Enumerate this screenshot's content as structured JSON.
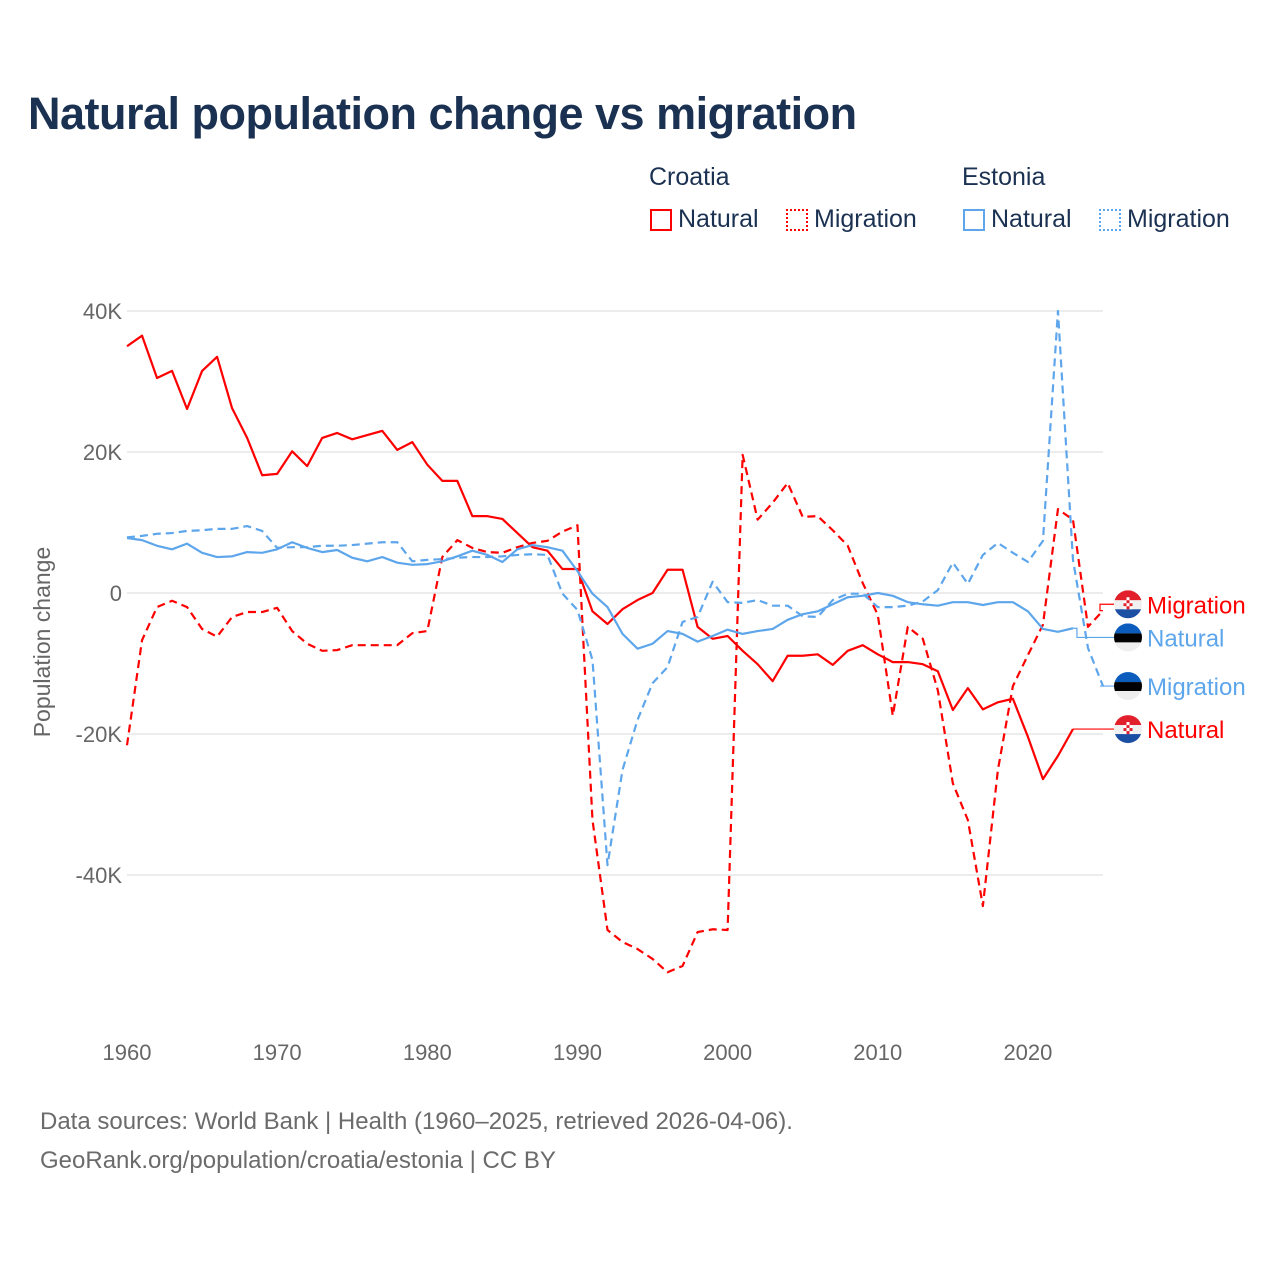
{
  "title": "Natural population change vs migration",
  "legend": {
    "groups": [
      {
        "country": "Croatia",
        "items": [
          {
            "label": "Natural",
            "style": "solid",
            "color": "#ff0000"
          },
          {
            "label": "Migration",
            "style": "dotted",
            "color": "#ff0000"
          }
        ]
      },
      {
        "country": "Estonia",
        "items": [
          {
            "label": "Natural",
            "style": "solid",
            "color": "#5ea6ec"
          },
          {
            "label": "Migration",
            "style": "dotted",
            "color": "#5ea6ec"
          }
        ]
      }
    ]
  },
  "footer": {
    "line1": "Data sources: World Bank | Health (1960–2025, retrieved 2026-04-06).",
    "line2": "GeoRank.org/population/croatia/estonia | CC BY"
  },
  "chart_data": {
    "type": "line",
    "title": "Natural population change vs migration",
    "xlabel": "",
    "ylabel": "Population change",
    "xlim": [
      1960,
      2025
    ],
    "ylim": [
      -57,
      43
    ],
    "x_ticks": [
      {
        "v": 1960,
        "label": "1960"
      },
      {
        "v": 1970,
        "label": "1970"
      },
      {
        "v": 1980,
        "label": "1980"
      },
      {
        "v": 1990,
        "label": "1990"
      },
      {
        "v": 2000,
        "label": "2000"
      },
      {
        "v": 2010,
        "label": "2010"
      },
      {
        "v": 2020,
        "label": "2020"
      }
    ],
    "y_ticks": [
      {
        "v": 40,
        "label": "40K"
      },
      {
        "v": 20,
        "label": "20K"
      },
      {
        "v": 0,
        "label": "0"
      },
      {
        "v": -20,
        "label": "-20K"
      },
      {
        "v": -40,
        "label": "-40K"
      }
    ],
    "units": "thousands",
    "grid": true,
    "legend_position": "top-right",
    "series": [
      {
        "name": "Croatia Natural",
        "end_label": "Natural",
        "color": "#ff0000",
        "dash": false,
        "label_y": -19.3,
        "start": 1960,
        "values": [
          35.0,
          36.5,
          30.5,
          31.5,
          26.1,
          31.5,
          33.5,
          26.2,
          22.0,
          16.7,
          16.9,
          20.1,
          18.0,
          22.0,
          22.7,
          21.8,
          22.4,
          23.0,
          20.3,
          21.4,
          18.2,
          15.9,
          15.9,
          10.9,
          10.9,
          10.5,
          8.5,
          6.5,
          6.0,
          3.4,
          3.4,
          -2.6,
          -4.4,
          -2.3,
          -1.0,
          0.0,
          3.3,
          3.3,
          -4.8,
          -6.5,
          -6.1,
          -8.2,
          -10.1,
          -12.5,
          -8.9,
          -8.9,
          -8.7,
          -10.2,
          -8.2,
          -7.4,
          -8.7,
          -9.8,
          -9.8,
          -10.1,
          -11.1,
          -16.6,
          -13.5,
          -16.5,
          -15.5,
          -15.0,
          -20.4,
          -26.4,
          -23.1,
          -19.3
        ]
      },
      {
        "name": "Croatia Migration",
        "end_label": "Migration",
        "color": "#ff0000",
        "dash": true,
        "label_y": -1.6,
        "start": 1960,
        "values": [
          -21.6,
          -6.7,
          -2.0,
          -1.1,
          -2.0,
          -5.1,
          -6.2,
          -3.4,
          -2.7,
          -2.7,
          -2.1,
          -5.4,
          -7.2,
          -8.2,
          -8.1,
          -7.4,
          -7.4,
          -7.4,
          -7.4,
          -5.7,
          -5.4,
          5.1,
          7.5,
          6.4,
          5.8,
          5.7,
          6.5,
          7.1,
          7.4,
          8.7,
          9.6,
          -32.2,
          -47.8,
          -49.5,
          -50.5,
          -51.9,
          -53.8,
          -52.9,
          -48.1,
          -47.7,
          -47.8,
          19.6,
          10.4,
          12.8,
          15.6,
          10.8,
          10.9,
          8.9,
          6.7,
          1.4,
          -3.1,
          -17.4,
          -4.8,
          -6.5,
          -13.8,
          -27.0,
          -32.2,
          -44.4,
          -25.1,
          -13.2,
          -8.8,
          -4.5,
          11.9,
          10.4,
          -4.8,
          -2.5
        ]
      },
      {
        "name": "Estonia Natural",
        "end_label": "Natural",
        "color": "#5ea6ec",
        "dash": false,
        "label_y": -6.3,
        "start": 1960,
        "values": [
          7.8,
          7.5,
          6.7,
          6.2,
          7.0,
          5.7,
          5.1,
          5.2,
          5.8,
          5.7,
          6.2,
          7.2,
          6.4,
          5.8,
          6.1,
          5.0,
          4.5,
          5.1,
          4.3,
          4.0,
          4.1,
          4.5,
          5.2,
          6.0,
          5.4,
          4.4,
          6.2,
          6.8,
          6.5,
          6.0,
          3.1,
          -0.1,
          -2.0,
          -5.8,
          -7.9,
          -7.2,
          -5.4,
          -5.8,
          -6.9,
          -6.1,
          -5.2,
          -5.8,
          -5.4,
          -5.1,
          -3.8,
          -3.0,
          -2.6,
          -1.6,
          -0.6,
          -0.4,
          0.0,
          -0.4,
          -1.3,
          -1.6,
          -1.8,
          -1.3,
          -1.3,
          -1.7,
          -1.3,
          -1.3,
          -2.6,
          -5.1,
          -5.5,
          -5.0
        ]
      },
      {
        "name": "Estonia Migration",
        "end_label": "Migration",
        "color": "#5ea6ec",
        "dash": true,
        "label_y": -13.2,
        "start": 1960,
        "values": [
          7.9,
          8.1,
          8.4,
          8.5,
          8.8,
          8.9,
          9.1,
          9.1,
          9.5,
          8.8,
          6.4,
          6.5,
          6.5,
          6.7,
          6.7,
          6.8,
          7.0,
          7.2,
          7.2,
          4.5,
          4.7,
          4.8,
          5.0,
          5.1,
          5.1,
          5.2,
          5.4,
          5.5,
          5.4,
          -0.1,
          -2.4,
          -9.5,
          -38.6,
          -25.1,
          -18.0,
          -12.8,
          -10.5,
          -4.1,
          -3.4,
          1.6,
          -1.3,
          -1.4,
          -1.0,
          -1.8,
          -1.8,
          -3.3,
          -3.4,
          -1.0,
          -0.1,
          -0.1,
          -2.0,
          -2.0,
          -1.8,
          -1.2,
          0.4,
          4.3,
          1.3,
          5.4,
          7.1,
          5.7,
          4.4,
          7.4,
          40.0,
          4.7,
          -7.8,
          -13.2
        ]
      }
    ]
  }
}
